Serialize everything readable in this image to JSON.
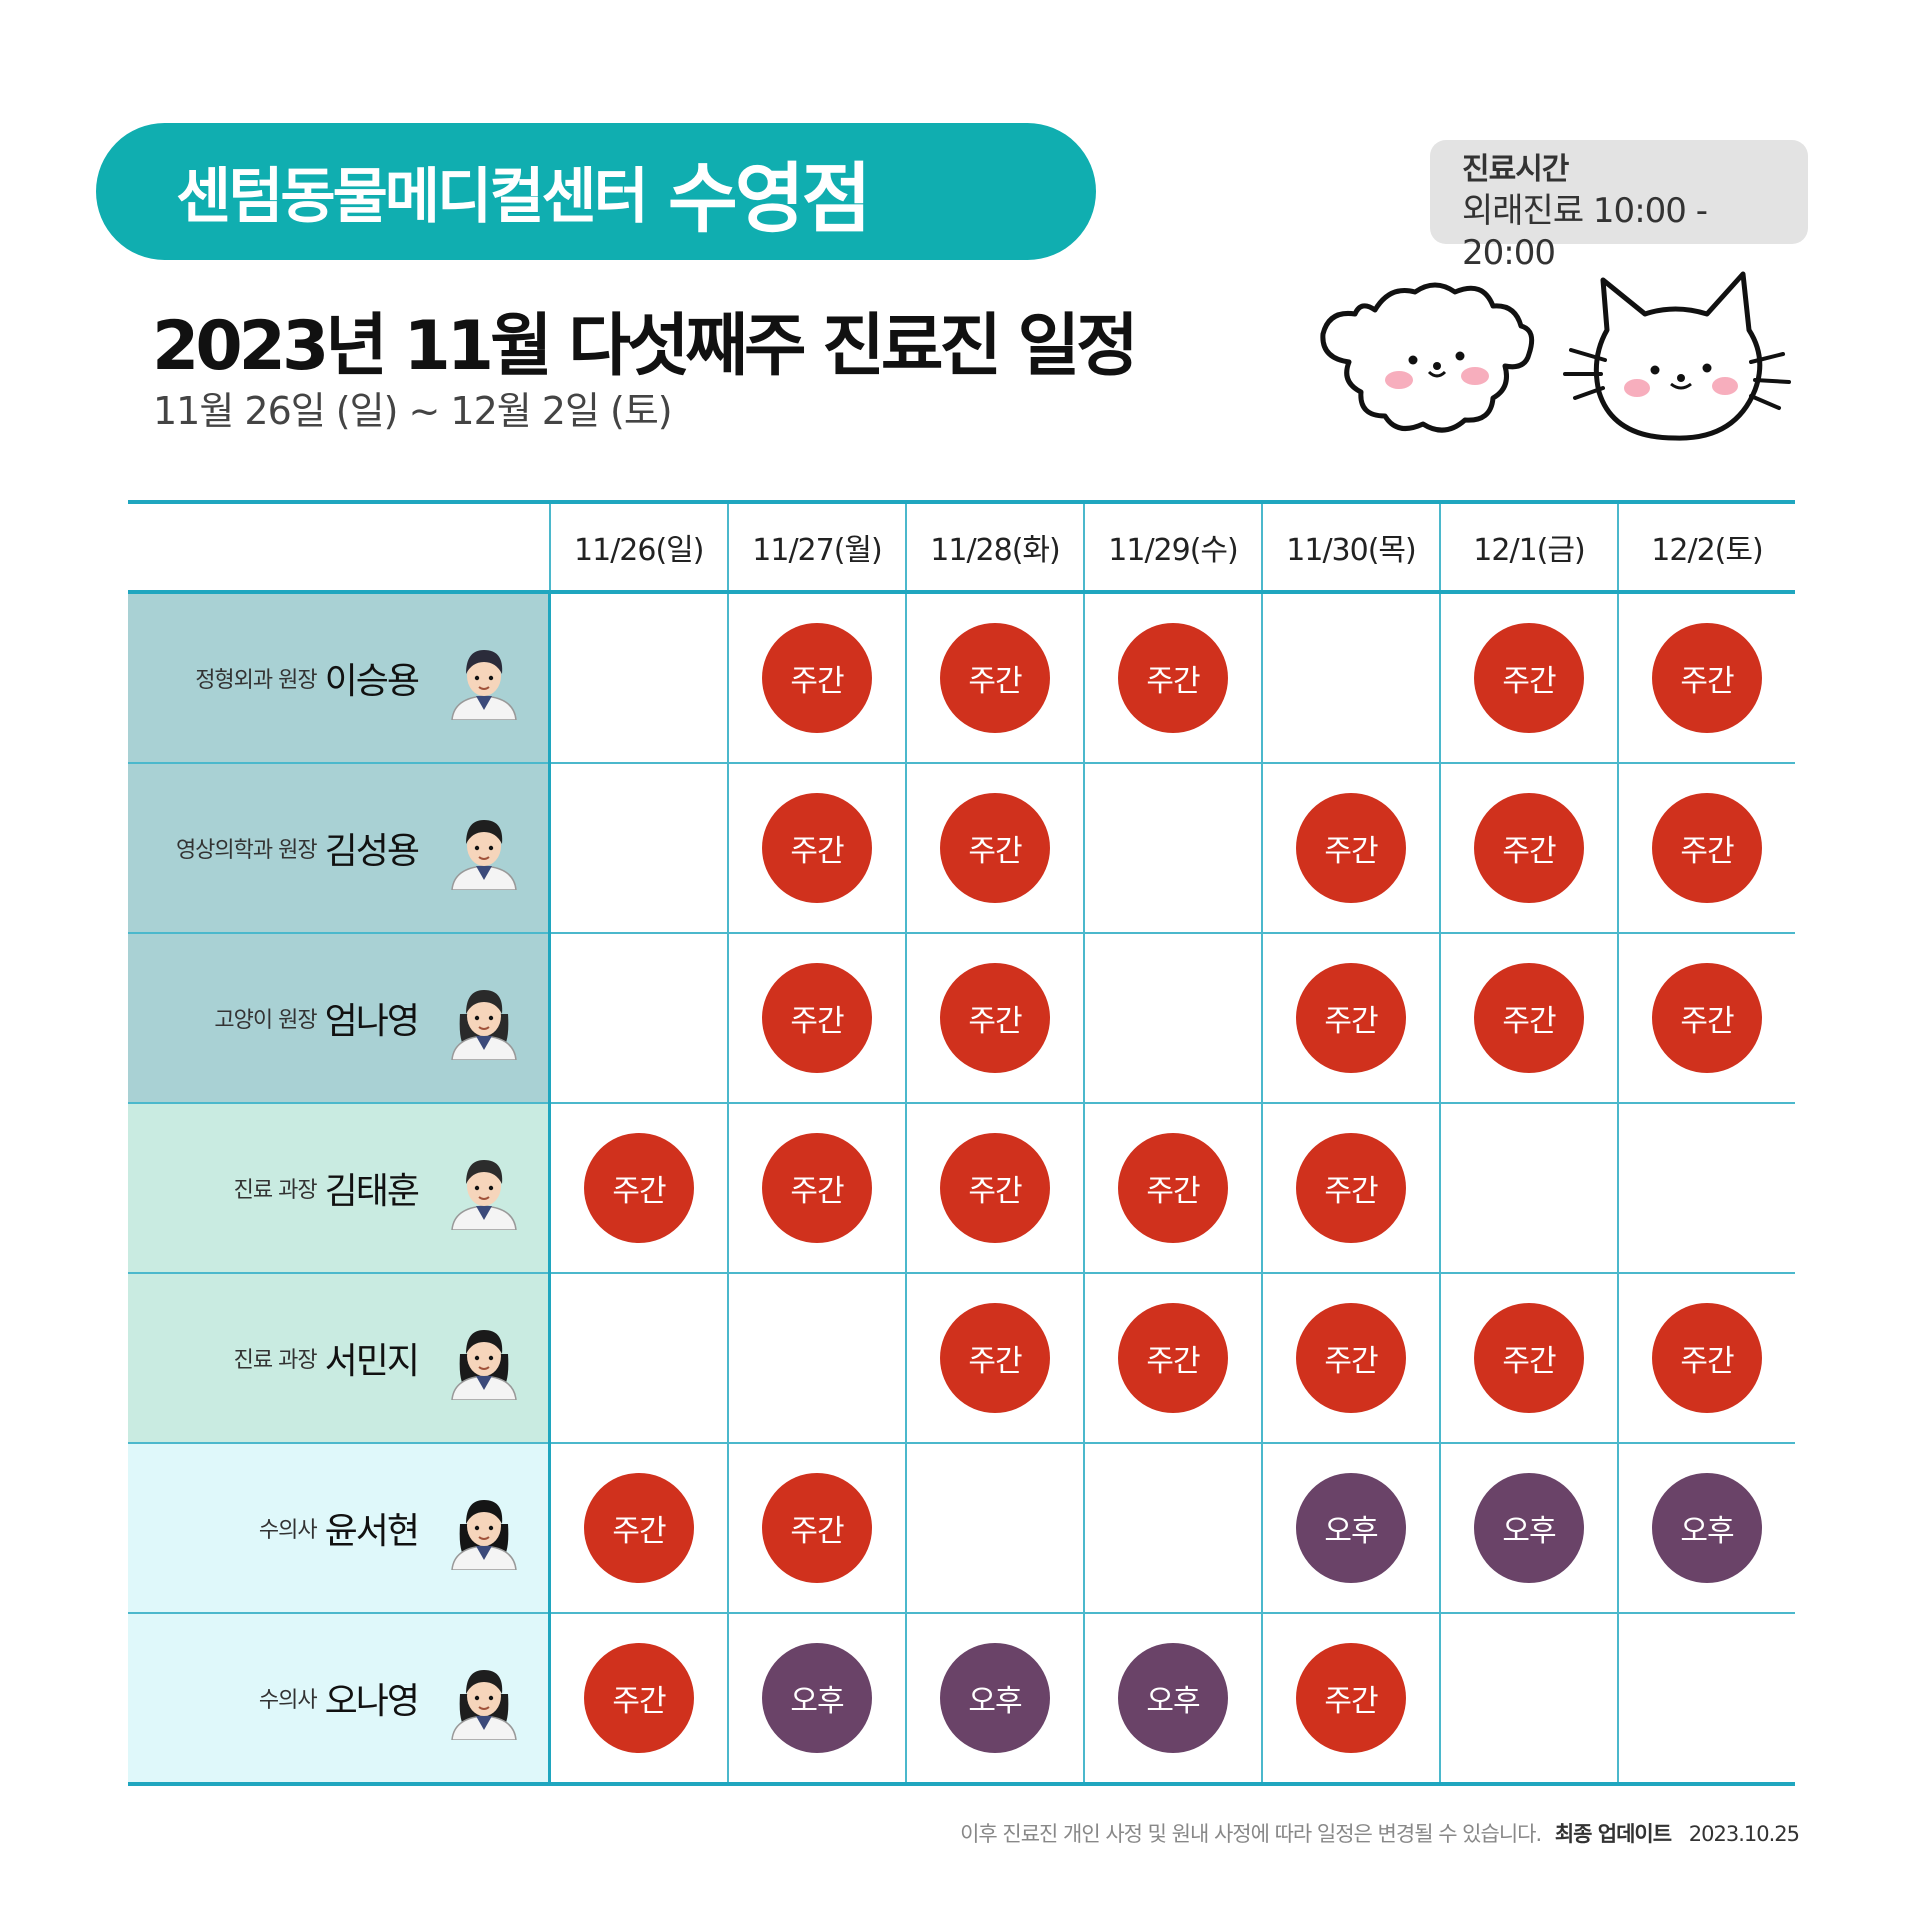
{
  "header": {
    "clinic_name": "센텀동물메디컬센터",
    "branch": "수영점",
    "title": "2023년 11월 다섯째주 진료진 일정",
    "date_range": "11월 26일 (일) ~ 12월 2일 (토)",
    "hours_label": "진료시간",
    "hours_value": "외래진료 10:00 - 20:00"
  },
  "colors": {
    "teal": "#10aeb0",
    "day_shift": "#d0311d",
    "afternoon": "#6a4368"
  },
  "days": [
    "11/26(일)",
    "11/27(월)",
    "11/28(화)",
    "11/29(수)",
    "11/30(목)",
    "12/1(금)",
    "12/2(토)"
  ],
  "doctors": [
    {
      "role": "정형외과 원장",
      "name": "이승용",
      "row_bg": "#a9d1d4",
      "shifts": [
        "",
        "주간",
        "주간",
        "주간",
        "",
        "주간",
        "주간"
      ]
    },
    {
      "role": "영상의학과 원장",
      "name": "김성용",
      "row_bg": "#a9d1d4",
      "shifts": [
        "",
        "주간",
        "주간",
        "",
        "주간",
        "주간",
        "주간"
      ]
    },
    {
      "role": "고양이 원장",
      "name": "엄나영",
      "row_bg": "#a9d1d4",
      "shifts": [
        "",
        "주간",
        "주간",
        "",
        "주간",
        "주간",
        "주간"
      ]
    },
    {
      "role": "진료 과장",
      "name": "김태훈",
      "row_bg": "#c9ebe1",
      "shifts": [
        "주간",
        "주간",
        "주간",
        "주간",
        "주간",
        "",
        ""
      ]
    },
    {
      "role": "진료 과장",
      "name": "서민지",
      "row_bg": "#c9ebe1",
      "shifts": [
        "",
        "",
        "주간",
        "주간",
        "주간",
        "주간",
        "주간"
      ]
    },
    {
      "role": "수의사",
      "name": "윤서현",
      "row_bg": "#dff8fa",
      "shifts": [
        "주간",
        "주간",
        "",
        "",
        "오후",
        "오후",
        "오후"
      ]
    },
    {
      "role": "수의사",
      "name": "오나영",
      "row_bg": "#dff8fa",
      "shifts": [
        "주간",
        "오후",
        "오후",
        "오후",
        "주간",
        "",
        ""
      ]
    }
  ],
  "footer": {
    "notice": "이후 진료진 개인 사정 및 원내 사정에 따라 일정은 변경될 수 있습니다.",
    "update_label": "최종 업데이트",
    "update_date": "2023.10.25"
  }
}
